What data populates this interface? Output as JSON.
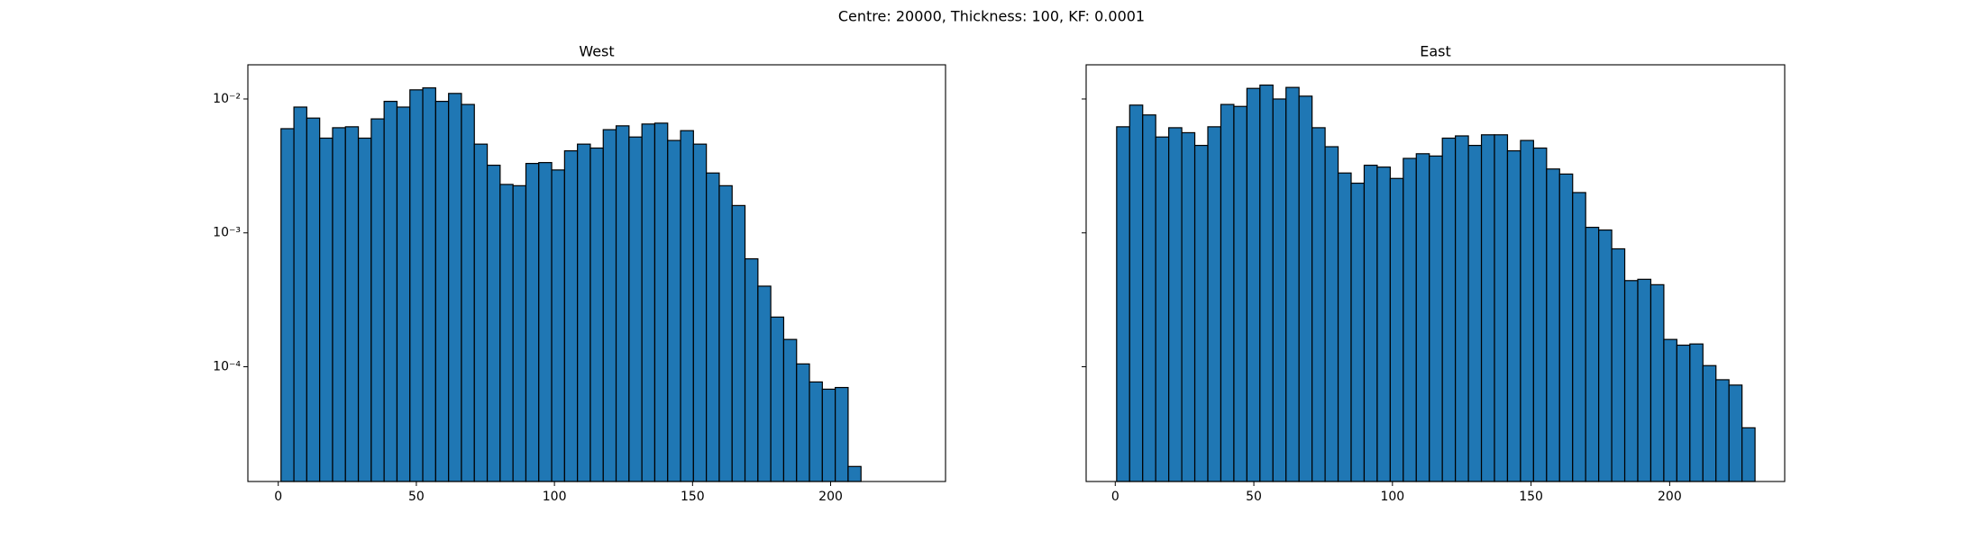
{
  "title": "Centre: 20000, Thickness: 100, KF: 0.0001",
  "chart_data": [
    {
      "type": "histogram",
      "title": "West",
      "log_y": true,
      "color": "#1f77b4",
      "edgecolor": "#000000",
      "bins": [
        1,
        5.67,
        10.33,
        15,
        19.67,
        24.33,
        29,
        33.67,
        38.33,
        43,
        47.67,
        52.33,
        57,
        61.67,
        66.33,
        71,
        75.67,
        80.33,
        85,
        89.67,
        94.33,
        99,
        103.67,
        108.33,
        113,
        117.67,
        122.33,
        127,
        131.67,
        136.33,
        141,
        145.67,
        150.33,
        155,
        159.67,
        164.33,
        169,
        173.67,
        178.33,
        183,
        187.67,
        192.33,
        197,
        201.67,
        206.33,
        211
      ],
      "values": [
        0.006,
        0.0087,
        0.0072,
        0.0051,
        0.0061,
        0.0062,
        0.0051,
        0.0071,
        0.0096,
        0.0087,
        0.0117,
        0.0121,
        0.0096,
        0.011,
        0.0091,
        0.0046,
        0.0032,
        0.0023,
        0.00225,
        0.0033,
        0.00335,
        0.00295,
        0.0041,
        0.0046,
        0.0043,
        0.0059,
        0.0063,
        0.0052,
        0.0065,
        0.0066,
        0.0049,
        0.0058,
        0.0046,
        0.0028,
        0.00225,
        0.0016,
        0.00064,
        0.0004,
        0.000235,
        0.00016,
        0.000105,
        7.7e-05,
        6.8e-05,
        7e-05,
        1.8e-05
      ],
      "xlim": [
        -11,
        241.6
      ],
      "xticks": [
        0,
        50,
        100,
        150,
        200
      ],
      "ylim": [
        1.39e-05,
        0.018
      ],
      "yticks": [
        {
          "value": 0.01,
          "label": "10⁻²"
        },
        {
          "value": 0.001,
          "label": "10⁻³"
        },
        {
          "value": 0.0001,
          "label": "10⁻⁴"
        }
      ]
    },
    {
      "type": "histogram",
      "title": "East",
      "log_y": true,
      "color": "#1f77b4",
      "edgecolor": "#000000",
      "show_ytick_labels": false,
      "bins": [
        0.5,
        5.2,
        9.9,
        14.6,
        19.3,
        24,
        28.7,
        33.4,
        38.1,
        42.8,
        47.5,
        52.2,
        56.9,
        61.6,
        66.3,
        71,
        75.7,
        80.4,
        85.1,
        89.8,
        94.5,
        99.2,
        103.9,
        108.6,
        113.3,
        118,
        122.7,
        127.4,
        132.1,
        136.8,
        141.5,
        146.2,
        150.9,
        155.6,
        160.3,
        165,
        169.7,
        174.4,
        179.1,
        183.8,
        188.5,
        193.2,
        197.9,
        202.6,
        207.3,
        212,
        216.7,
        221.4,
        226.1,
        230.8
      ],
      "values": [
        0.0062,
        0.009,
        0.0076,
        0.0052,
        0.0061,
        0.0056,
        0.0045,
        0.0062,
        0.0091,
        0.0088,
        0.012,
        0.0127,
        0.01,
        0.0122,
        0.0105,
        0.0061,
        0.0044,
        0.0028,
        0.00235,
        0.0032,
        0.0031,
        0.00255,
        0.0036,
        0.0039,
        0.00375,
        0.0051,
        0.0053,
        0.0045,
        0.0054,
        0.0054,
        0.0041,
        0.0049,
        0.0043,
        0.003,
        0.00275,
        0.002,
        0.0011,
        0.00105,
        0.00076,
        0.00044,
        0.00045,
        0.00041,
        0.00016,
        0.000145,
        0.000148,
        0.000102,
        8e-05,
        7.3e-05,
        3.5e-05
      ],
      "xlim": [
        -10.5,
        241.5
      ],
      "xticks": [
        0,
        50,
        100,
        150,
        200
      ],
      "ylim": [
        1.39e-05,
        0.018
      ],
      "yticks": [
        0.01,
        0.001,
        0.0001
      ]
    }
  ]
}
